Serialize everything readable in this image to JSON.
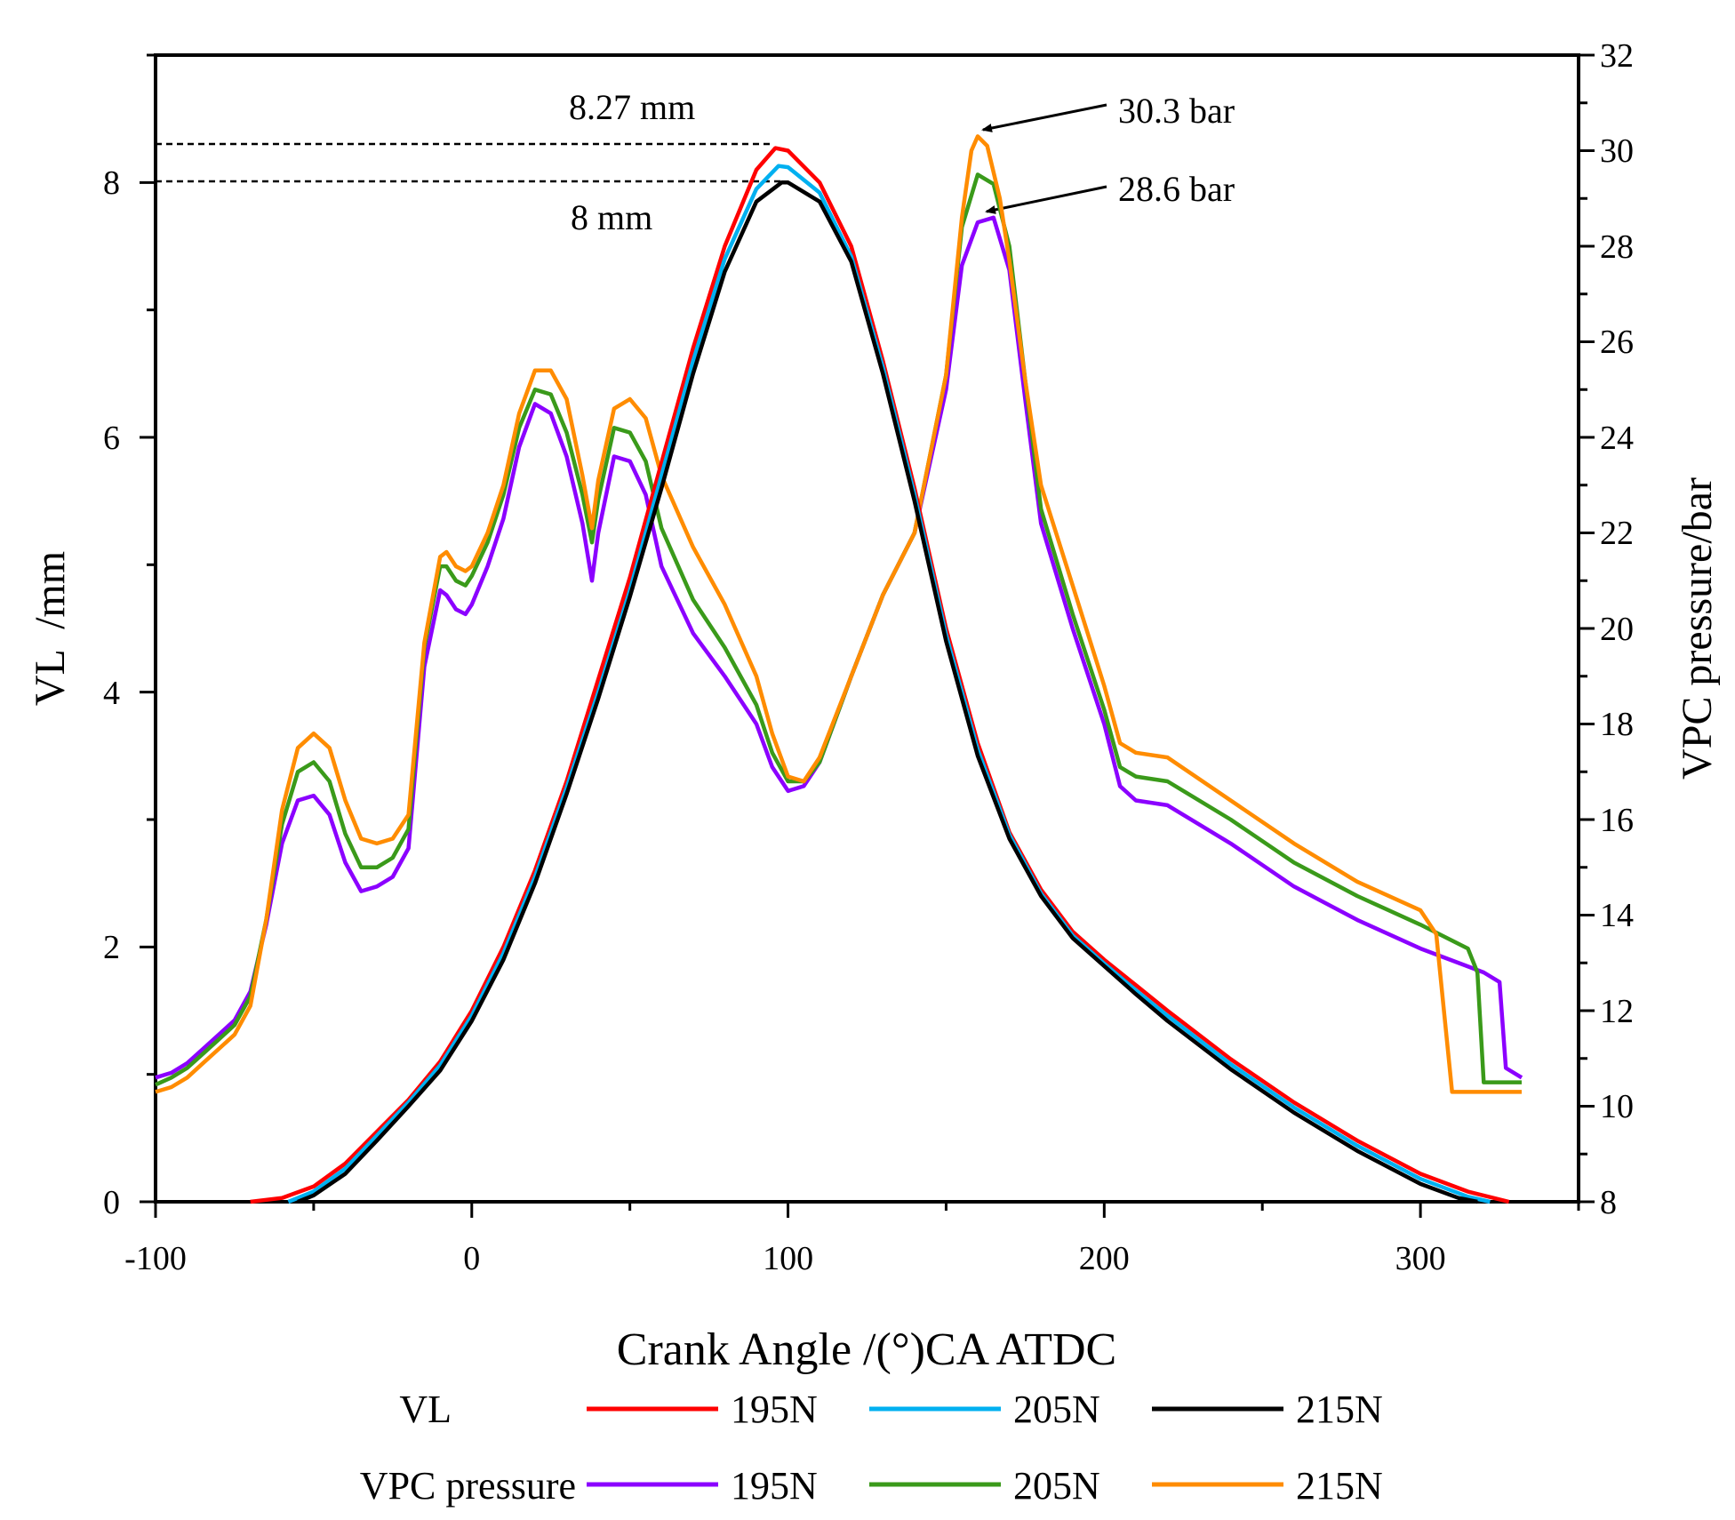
{
  "chart_data": {
    "type": "line",
    "xlabel": "Crank Angle /(°)CA ATDC",
    "ylabel_left": "VL  /mm",
    "ylabel_right": "VPC pressure/bar",
    "xlim": [
      -100,
      350
    ],
    "ylim_left": [
      0,
      9
    ],
    "ylim_right": [
      8,
      32
    ],
    "x_ticks": [
      -100,
      0,
      100,
      200,
      300
    ],
    "x_ticks_labels": [
      "-100",
      "0",
      "100",
      "200",
      "300"
    ],
    "y_left_ticks": [
      0,
      2,
      4,
      6,
      8
    ],
    "y_left_ticks_labels": [
      "0",
      "2",
      "4",
      "6",
      "8"
    ],
    "y_right_ticks": [
      8,
      10,
      12,
      14,
      16,
      18,
      20,
      22,
      24,
      26,
      28,
      30,
      32
    ],
    "y_right_ticks_labels": [
      "8",
      "10",
      "12",
      "14",
      "16",
      "18",
      "20",
      "22",
      "24",
      "26",
      "28",
      "30",
      "32"
    ],
    "grid": false,
    "legend": {
      "position": "bottom",
      "group_labels": [
        "VL",
        "VPC pressure"
      ],
      "series_labels": [
        "195N",
        "205N",
        "215N"
      ]
    },
    "annotations": [
      {
        "text": "8.27 mm",
        "x": 96,
        "y_left": 8.27,
        "kind": "dashed-reference"
      },
      {
        "text": "8 mm",
        "x": 98,
        "y_left": 8.0,
        "kind": "dashed-reference"
      },
      {
        "text": "30.3 bar",
        "x": 160,
        "y_right": 30.3,
        "kind": "arrow"
      },
      {
        "text": "28.6 bar",
        "x": 162,
        "y_right": 28.6,
        "kind": "arrow"
      }
    ],
    "series": [
      {
        "name": "195N",
        "group": "VL",
        "axis": "left",
        "color": "#ff0000",
        "x": [
          -70,
          -60,
          -50,
          -40,
          -30,
          -20,
          -10,
          0,
          10,
          20,
          30,
          40,
          50,
          60,
          70,
          80,
          90,
          96,
          100,
          110,
          120,
          130,
          140,
          150,
          160,
          170,
          180,
          190,
          200,
          210,
          220,
          240,
          260,
          280,
          300,
          315,
          328
        ],
        "y": [
          0,
          0.03,
          0.12,
          0.3,
          0.55,
          0.8,
          1.1,
          1.5,
          2.0,
          2.6,
          3.3,
          4.1,
          4.9,
          5.8,
          6.7,
          7.5,
          8.1,
          8.27,
          8.25,
          8.0,
          7.5,
          6.6,
          5.6,
          4.5,
          3.6,
          2.9,
          2.45,
          2.12,
          1.9,
          1.7,
          1.5,
          1.12,
          0.78,
          0.48,
          0.22,
          0.08,
          0
        ]
      },
      {
        "name": "205N",
        "group": "VL",
        "axis": "left",
        "color": "#00b0f0",
        "x": [
          -58,
          -50,
          -40,
          -30,
          -20,
          -10,
          0,
          10,
          20,
          30,
          40,
          50,
          60,
          70,
          80,
          90,
          97,
          100,
          110,
          120,
          130,
          140,
          150,
          160,
          170,
          180,
          190,
          200,
          210,
          220,
          240,
          260,
          280,
          300,
          315,
          322
        ],
        "y": [
          0,
          0.08,
          0.26,
          0.52,
          0.78,
          1.07,
          1.46,
          1.95,
          2.55,
          3.25,
          4.0,
          4.8,
          5.7,
          6.6,
          7.4,
          7.95,
          8.13,
          8.12,
          7.92,
          7.42,
          6.55,
          5.55,
          4.45,
          3.55,
          2.88,
          2.42,
          2.09,
          1.87,
          1.66,
          1.46,
          1.08,
          0.74,
          0.44,
          0.18,
          0.04,
          0
        ]
      },
      {
        "name": "215N",
        "group": "VL",
        "axis": "left",
        "color": "#000000",
        "x": [
          -55,
          -50,
          -40,
          -30,
          -20,
          -10,
          0,
          10,
          20,
          30,
          40,
          50,
          60,
          70,
          80,
          90,
          98,
          100,
          110,
          120,
          130,
          140,
          150,
          160,
          170,
          180,
          190,
          200,
          210,
          220,
          240,
          260,
          280,
          300,
          312,
          318
        ],
        "y": [
          0,
          0.05,
          0.22,
          0.48,
          0.75,
          1.03,
          1.42,
          1.9,
          2.5,
          3.2,
          3.95,
          4.75,
          5.6,
          6.5,
          7.3,
          7.85,
          8.0,
          8.0,
          7.85,
          7.38,
          6.5,
          5.5,
          4.4,
          3.5,
          2.85,
          2.4,
          2.07,
          1.85,
          1.63,
          1.42,
          1.04,
          0.7,
          0.4,
          0.14,
          0.03,
          0
        ]
      },
      {
        "name": "195N",
        "group": "VPC pressure",
        "axis": "right",
        "color": "#8b00ff",
        "x": [
          -100,
          -95,
          -90,
          -85,
          -80,
          -75,
          -70,
          -65,
          -60,
          -55,
          -50,
          -45,
          -40,
          -35,
          -30,
          -25,
          -20,
          -15,
          -10,
          -8,
          -5,
          -2,
          0,
          5,
          10,
          15,
          20,
          25,
          30,
          35,
          38,
          40,
          45,
          50,
          55,
          60,
          70,
          80,
          90,
          95,
          100,
          105,
          110,
          120,
          130,
          140,
          150,
          155,
          160,
          165,
          170,
          175,
          180,
          190,
          200,
          205,
          210,
          220,
          240,
          260,
          280,
          300,
          320,
          325,
          327,
          332
        ],
        "y": [
          10.6,
          10.7,
          10.9,
          11.2,
          11.5,
          11.8,
          12.4,
          13.8,
          15.5,
          16.4,
          16.5,
          16.1,
          15.1,
          14.5,
          14.6,
          14.8,
          15.4,
          19.2,
          20.8,
          20.7,
          20.4,
          20.3,
          20.5,
          21.3,
          22.3,
          23.8,
          24.7,
          24.5,
          23.6,
          22.2,
          21.0,
          22.0,
          23.6,
          23.5,
          22.8,
          21.3,
          19.9,
          19.0,
          18.0,
          17.1,
          16.6,
          16.7,
          17.2,
          19.0,
          20.7,
          22.0,
          25.0,
          27.6,
          28.5,
          28.6,
          27.5,
          24.8,
          22.2,
          20.0,
          18.0,
          16.7,
          16.4,
          16.3,
          15.5,
          14.6,
          13.9,
          13.3,
          12.8,
          12.6,
          10.8,
          10.6
        ]
      },
      {
        "name": "205N",
        "group": "VPC pressure",
        "axis": "right",
        "color": "#3a9a1a",
        "x": [
          -100,
          -95,
          -90,
          -85,
          -80,
          -75,
          -70,
          -65,
          -60,
          -55,
          -50,
          -45,
          -40,
          -35,
          -30,
          -25,
          -20,
          -15,
          -10,
          -8,
          -5,
          -2,
          0,
          5,
          10,
          15,
          20,
          25,
          30,
          35,
          38,
          40,
          45,
          50,
          55,
          60,
          70,
          80,
          90,
          95,
          100,
          105,
          110,
          120,
          130,
          140,
          150,
          155,
          160,
          165,
          170,
          175,
          180,
          190,
          200,
          205,
          210,
          220,
          240,
          260,
          280,
          300,
          315,
          318,
          320,
          332
        ],
        "y": [
          10.45,
          10.6,
          10.8,
          11.1,
          11.4,
          11.7,
          12.3,
          13.9,
          15.9,
          17.0,
          17.2,
          16.8,
          15.7,
          15.0,
          15.0,
          15.2,
          15.8,
          19.6,
          21.3,
          21.3,
          21.0,
          20.9,
          21.1,
          21.8,
          22.8,
          24.2,
          25.0,
          24.9,
          24.1,
          22.8,
          21.8,
          22.7,
          24.2,
          24.1,
          23.5,
          22.1,
          20.6,
          19.6,
          18.4,
          17.4,
          16.8,
          16.8,
          17.2,
          19.0,
          20.7,
          22.0,
          25.3,
          28.4,
          29.5,
          29.3,
          28.0,
          25.2,
          22.5,
          20.3,
          18.3,
          17.1,
          16.9,
          16.8,
          16.0,
          15.1,
          14.4,
          13.8,
          13.3,
          12.8,
          10.5,
          10.5
        ]
      },
      {
        "name": "215N",
        "group": "VPC pressure",
        "axis": "right",
        "color": "#ff8c00",
        "x": [
          -100,
          -95,
          -90,
          -85,
          -80,
          -75,
          -70,
          -65,
          -60,
          -55,
          -50,
          -45,
          -40,
          -35,
          -30,
          -25,
          -20,
          -15,
          -10,
          -8,
          -5,
          -2,
          0,
          5,
          10,
          15,
          20,
          25,
          30,
          35,
          38,
          40,
          45,
          50,
          55,
          60,
          70,
          80,
          90,
          95,
          100,
          105,
          110,
          120,
          130,
          140,
          150,
          155,
          158,
          160,
          163,
          167,
          170,
          175,
          180,
          190,
          200,
          205,
          210,
          220,
          240,
          260,
          280,
          300,
          305,
          310,
          332
        ],
        "y": [
          10.3,
          10.4,
          10.6,
          10.9,
          11.2,
          11.5,
          12.1,
          13.9,
          16.2,
          17.5,
          17.8,
          17.5,
          16.4,
          15.6,
          15.5,
          15.6,
          16.1,
          19.7,
          21.5,
          21.6,
          21.3,
          21.2,
          21.3,
          22.0,
          23.0,
          24.5,
          25.4,
          25.4,
          24.8,
          23.2,
          22.1,
          23.1,
          24.6,
          24.8,
          24.4,
          23.2,
          21.7,
          20.5,
          19.0,
          17.8,
          16.9,
          16.8,
          17.3,
          19.0,
          20.7,
          22.0,
          25.3,
          28.6,
          30.0,
          30.3,
          30.1,
          29.0,
          27.7,
          25.2,
          23.0,
          20.9,
          18.8,
          17.6,
          17.4,
          17.3,
          16.4,
          15.5,
          14.7,
          14.1,
          13.6,
          10.3,
          10.3
        ]
      }
    ]
  }
}
